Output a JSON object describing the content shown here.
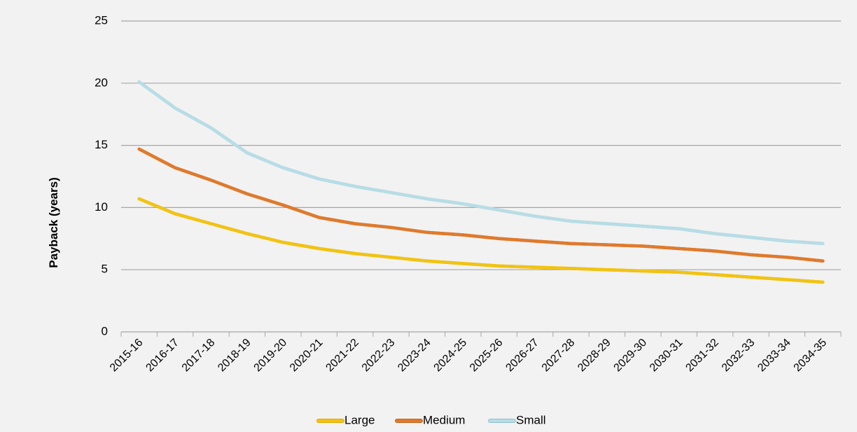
{
  "chart_data": {
    "type": "line",
    "title": "",
    "xlabel": "",
    "ylabel": "Payback (years)",
    "ylim": [
      0,
      25
    ],
    "yticks": [
      "0",
      "5",
      "10",
      "15",
      "20",
      "25"
    ],
    "grid": true,
    "legend_position": "bottom",
    "categories": [
      "2015-16",
      "2016-17",
      "2017-18",
      "2018-19",
      "2019-20",
      "2020-21",
      "2021-22",
      "2022-23",
      "2023-24",
      "2024-25",
      "2025-26",
      "2026-27",
      "2027-28",
      "2028-29",
      "2029-30",
      "2030-31",
      "2031-32",
      "2032-33",
      "2033-34",
      "2034-35"
    ],
    "series": [
      {
        "name": "Large",
        "color": "#f2c311",
        "outline": "#e0a800",
        "values": [
          10.7,
          9.5,
          8.7,
          7.9,
          7.2,
          6.7,
          6.3,
          6.0,
          5.7,
          5.5,
          5.3,
          5.2,
          5.1,
          5.0,
          4.9,
          4.8,
          4.6,
          4.4,
          4.2,
          4.0
        ]
      },
      {
        "name": "Medium",
        "color": "#e07a2b",
        "outline": "#c8621a",
        "values": [
          14.7,
          13.2,
          12.2,
          11.1,
          10.2,
          9.2,
          8.7,
          8.4,
          8.0,
          7.8,
          7.5,
          7.3,
          7.1,
          7.0,
          6.9,
          6.7,
          6.5,
          6.2,
          6.0,
          5.7
        ]
      },
      {
        "name": "Small",
        "color": "#b7dde6",
        "outline": "#8fbfcc",
        "values": [
          20.1,
          18.0,
          16.4,
          14.4,
          13.2,
          12.3,
          11.7,
          11.2,
          10.7,
          10.3,
          9.8,
          9.3,
          8.9,
          8.7,
          8.5,
          8.3,
          7.9,
          7.6,
          7.3,
          7.1
        ]
      }
    ]
  }
}
